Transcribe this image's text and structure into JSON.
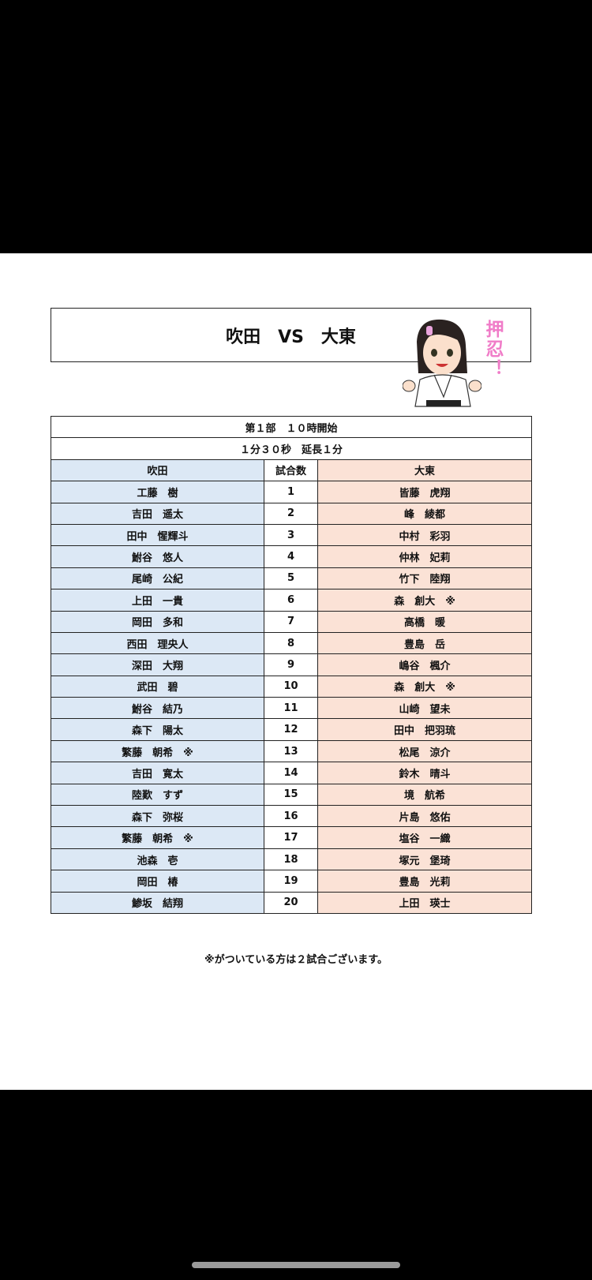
{
  "title": "吹田　VS　大東",
  "mascot_text": "押忍！",
  "session": "第１部　１０時開始",
  "duration": "１分３０秒　延長１分",
  "headers": {
    "left": "吹田",
    "center": "試合数",
    "right": "大東"
  },
  "matches": [
    {
      "no": "1",
      "left": "工藤　樹",
      "right": "皆藤　虎翔"
    },
    {
      "no": "2",
      "left": "吉田　遥太",
      "right": "峰　綾都"
    },
    {
      "no": "3",
      "left": "田中　惺輝斗",
      "right": "中村　彩羽"
    },
    {
      "no": "4",
      "left": "鮒谷　悠人",
      "right": "仲林　妃莉"
    },
    {
      "no": "5",
      "left": "尾崎　公紀",
      "right": "竹下　陸翔"
    },
    {
      "no": "6",
      "left": "上田　一貴",
      "right": "森　創大　※"
    },
    {
      "no": "7",
      "left": "岡田　多和",
      "right": "高橋　暖"
    },
    {
      "no": "8",
      "left": "西田　理央人",
      "right": "豊島　岳"
    },
    {
      "no": "9",
      "left": "深田　大翔",
      "right": "嶋谷　楓介"
    },
    {
      "no": "10",
      "left": "武田　碧",
      "right": "森　創大　※"
    },
    {
      "no": "11",
      "left": "鮒谷　結乃",
      "right": "山崎　望未"
    },
    {
      "no": "12",
      "left": "森下　陽太",
      "right": "田中　把羽琉"
    },
    {
      "no": "13",
      "left": "繁藤　朝希　※",
      "right": "松尾　涼介"
    },
    {
      "no": "14",
      "left": "吉田　寛太",
      "right": "鈴木　晴斗"
    },
    {
      "no": "15",
      "left": "陸歎　すず",
      "right": "境　航希"
    },
    {
      "no": "16",
      "left": "森下　弥桜",
      "right": "片島　悠佑"
    },
    {
      "no": "17",
      "left": "繁藤　朝希　※",
      "right": "塩谷　一織"
    },
    {
      "no": "18",
      "left": "池森　壱",
      "right": "塚元　堡琦"
    },
    {
      "no": "19",
      "left": "岡田　椿",
      "right": "豊島　光莉"
    },
    {
      "no": "20",
      "left": "鯵坂　結翔",
      "right": "上田　瑛士"
    }
  ],
  "footnote": "※がついている方は２試合ございます。",
  "colors": {
    "left_bg": "#dce8f5",
    "right_bg": "#fbe2d6",
    "mascot_text": "#f07cc8"
  }
}
